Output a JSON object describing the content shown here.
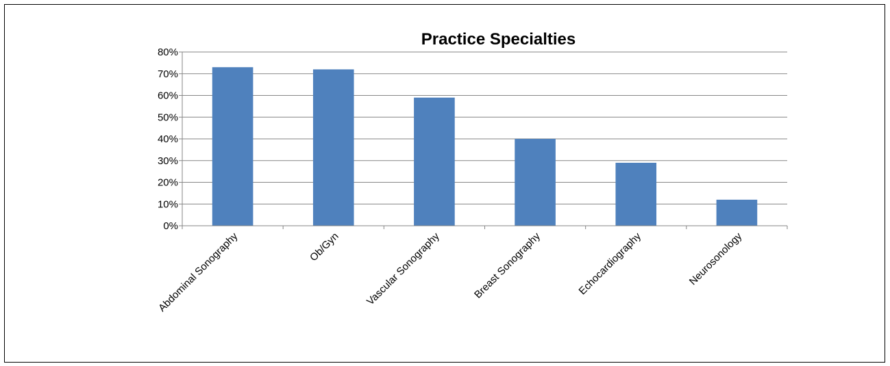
{
  "chart_data": {
    "type": "bar",
    "title": "Practice Specialties",
    "xlabel": "",
    "ylabel": "",
    "categories": [
      "Abdominal Sonography",
      "Ob/Gyn",
      "Vascular Sonography",
      "Breast Sonography",
      "Echocardiography",
      "Neurosonology"
    ],
    "values": [
      73,
      72,
      59,
      40,
      29,
      12
    ],
    "ylim": [
      0,
      80
    ],
    "yticks": [
      "0%",
      "10%",
      "20%",
      "30%",
      "40%",
      "50%",
      "60%",
      "70%",
      "80%"
    ],
    "grid": true,
    "legend": "none",
    "colors": {
      "bar": "#4F81BD",
      "grid": "#868686",
      "axis": "#868686"
    }
  }
}
